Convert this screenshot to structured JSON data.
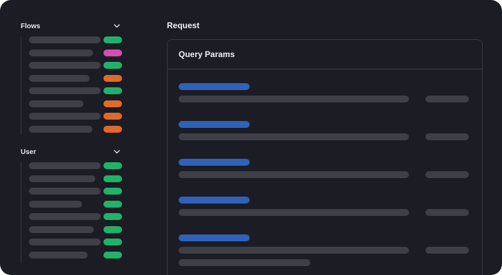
{
  "colors": {
    "background": "#1c1c24",
    "skeleton": "#3f3f48",
    "key": "#2f62b8",
    "get": "#1fb36a",
    "post": "#e06a2a",
    "delete": "#d34fb2"
  },
  "sidebar": {
    "flows": {
      "label": "Flows",
      "toggle_icon": "chevron-down-icon",
      "items": [
        {
          "method": "get"
        },
        {
          "method": "delete"
        },
        {
          "method": "get"
        },
        {
          "method": "post"
        },
        {
          "method": "get"
        },
        {
          "method": "post"
        },
        {
          "method": "post"
        },
        {
          "method": "post"
        }
      ]
    },
    "user": {
      "label": "User",
      "toggle_icon": "chevron-down-icon",
      "items": [
        {
          "method": "get"
        },
        {
          "method": "get"
        },
        {
          "method": "get"
        },
        {
          "method": "get"
        },
        {
          "method": "get"
        },
        {
          "method": "get"
        },
        {
          "method": "get"
        },
        {
          "method": "get"
        }
      ]
    }
  },
  "main": {
    "title": "Request",
    "panel": {
      "title": "Query Params",
      "params": [
        {
          "has_extra": false
        },
        {
          "has_extra": false
        },
        {
          "has_extra": false
        },
        {
          "has_extra": false
        },
        {
          "has_extra": true
        }
      ]
    }
  }
}
